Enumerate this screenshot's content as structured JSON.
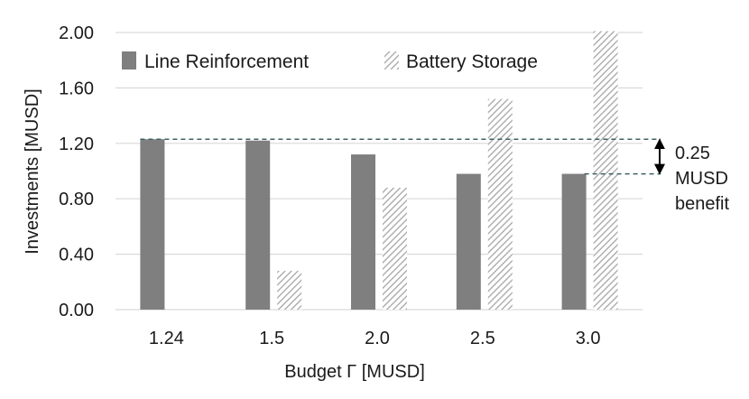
{
  "chart_data": {
    "type": "bar",
    "categories": [
      "1.24",
      "1.5",
      "2.0",
      "2.5",
      "3.0"
    ],
    "series": [
      {
        "name": "Line Reinforcement",
        "values": [
          1.23,
          1.22,
          1.12,
          0.98,
          0.98
        ]
      },
      {
        "name": "Battery Storage",
        "values": [
          0.0,
          0.28,
          0.88,
          1.52,
          2.01
        ]
      }
    ],
    "yticks": [
      "0.00",
      "0.40",
      "0.80",
      "1.20",
      "1.60",
      "2.00"
    ],
    "ylim": [
      0,
      2.0
    ],
    "xlabel": "Budget Γ [MUSD]",
    "ylabel": "Investments [MUSD]",
    "grid": "horizontal",
    "legend": "top",
    "annotation": {
      "lines": [
        "0.25",
        "MUSD",
        "benefit"
      ],
      "upper_value": 1.23,
      "lower_value": 0.98
    },
    "colors": {
      "line_reinforcement": "#7f7f7f",
      "battery_hatch": "#b3b3b3",
      "reference": "#3f5f66"
    }
  }
}
